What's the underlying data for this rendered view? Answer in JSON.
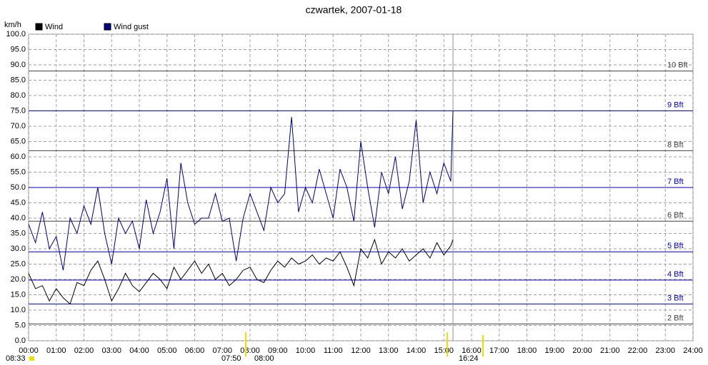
{
  "chart_data": {
    "type": "line",
    "title": "czwartek, 2007-01-18",
    "y_label": "km/h",
    "legend": "top-left",
    "grid": true,
    "x": [
      0,
      0.25,
      0.5,
      0.75,
      1,
      1.25,
      1.5,
      1.75,
      2,
      2.25,
      2.5,
      2.75,
      3,
      3.25,
      3.5,
      3.75,
      4,
      4.25,
      4.5,
      4.75,
      5,
      5.25,
      5.5,
      5.75,
      6,
      6.25,
      6.5,
      6.75,
      7,
      7.25,
      7.5,
      7.75,
      8,
      8.25,
      8.5,
      8.75,
      9,
      9.25,
      9.5,
      9.75,
      10,
      10.25,
      10.5,
      10.75,
      11,
      11.25,
      11.5,
      11.75,
      12,
      12.25,
      12.5,
      12.75,
      13,
      13.25,
      13.5,
      13.75,
      14,
      14.25,
      14.5,
      14.75,
      15,
      15.25,
      15.33
    ],
    "series": [
      {
        "name": "Wind",
        "color": "#000000",
        "values": [
          22,
          17,
          18,
          13,
          17,
          14,
          12,
          19,
          18,
          23,
          26,
          20,
          13,
          17,
          22,
          18,
          16,
          19,
          22,
          20,
          17,
          24,
          20,
          23,
          26,
          22,
          25,
          20,
          22,
          18,
          20,
          23,
          24,
          20,
          19,
          23,
          26,
          24,
          27,
          25,
          26,
          28,
          25,
          27,
          26,
          29,
          24,
          18,
          30,
          27,
          33,
          25,
          29,
          27,
          30,
          26,
          28,
          30,
          27,
          32,
          28,
          31,
          33
        ]
      },
      {
        "name": "Wind gust",
        "color": "#000080",
        "values": [
          38,
          32,
          42,
          30,
          34,
          23,
          40,
          35,
          44,
          38,
          50,
          35,
          25,
          40,
          35,
          39,
          30,
          46,
          35,
          42,
          53,
          30,
          58,
          45,
          38,
          40,
          40,
          48,
          39,
          40,
          26,
          40,
          48,
          42,
          36,
          50,
          45,
          48,
          73,
          42,
          50,
          45,
          56,
          48,
          40,
          56,
          50,
          39,
          65,
          50,
          37,
          55,
          48,
          60,
          43,
          52,
          72,
          45,
          55,
          48,
          58,
          52,
          75
        ]
      }
    ],
    "xlim": [
      0,
      24
    ],
    "xticks": [
      {
        "value": 0,
        "label": "00:00"
      },
      {
        "value": 1,
        "label": "01:00"
      },
      {
        "value": 2,
        "label": "02:00"
      },
      {
        "value": 3,
        "label": "03:00"
      },
      {
        "value": 4,
        "label": "04:00"
      },
      {
        "value": 5,
        "label": "05:00"
      },
      {
        "value": 6,
        "label": "06:00"
      },
      {
        "value": 7,
        "label": "07:00"
      },
      {
        "value": 8,
        "label": "08:00"
      },
      {
        "value": 9,
        "label": "09:00"
      },
      {
        "value": 10,
        "label": "10:00"
      },
      {
        "value": 11,
        "label": "11:00"
      },
      {
        "value": 12,
        "label": "12:00"
      },
      {
        "value": 13,
        "label": "13:00"
      },
      {
        "value": 14,
        "label": "14:00"
      },
      {
        "value": 15,
        "label": "15:00"
      },
      {
        "value": 16,
        "label": "16:00"
      },
      {
        "value": 17,
        "label": "17:00"
      },
      {
        "value": 18,
        "label": "18:00"
      },
      {
        "value": 19,
        "label": "19:00"
      },
      {
        "value": 20,
        "label": "20:00"
      },
      {
        "value": 21,
        "label": "21:00"
      },
      {
        "value": 22,
        "label": "22:00"
      },
      {
        "value": 23,
        "label": "23:00"
      },
      {
        "value": 24,
        "label": "24:00"
      }
    ],
    "ylim": [
      0,
      100
    ],
    "yticks": [
      {
        "value": 0,
        "label": "0.0"
      },
      {
        "value": 5,
        "label": "5.0"
      },
      {
        "value": 10,
        "label": "10.0"
      },
      {
        "value": 15,
        "label": "15.0"
      },
      {
        "value": 20,
        "label": "20.0"
      },
      {
        "value": 25,
        "label": "25.0"
      },
      {
        "value": 30,
        "label": "30.0"
      },
      {
        "value": 35,
        "label": "35.0"
      },
      {
        "value": 40,
        "label": "40.0"
      },
      {
        "value": 45,
        "label": "45.0"
      },
      {
        "value": 50,
        "label": "50.0"
      },
      {
        "value": 55,
        "label": "55.0"
      },
      {
        "value": 60,
        "label": "60.0"
      },
      {
        "value": 65,
        "label": "65.0"
      },
      {
        "value": 70,
        "label": "70.0"
      },
      {
        "value": 75,
        "label": "75.0"
      },
      {
        "value": 80,
        "label": "80.0"
      },
      {
        "value": 85,
        "label": "85.0"
      },
      {
        "value": 90,
        "label": "90.0"
      },
      {
        "value": 95,
        "label": "95.0"
      },
      {
        "value": 100,
        "label": "100.0"
      }
    ],
    "beaufort": [
      {
        "value": 5.5,
        "label": "2 Bft",
        "color": "#404040"
      },
      {
        "value": 12,
        "label": "3 Bft",
        "color": "#0000c0"
      },
      {
        "value": 19.8,
        "label": "4 Bft",
        "color": "#0000c0"
      },
      {
        "value": 29,
        "label": "5 Bft",
        "color": "#0000c0"
      },
      {
        "value": 39,
        "label": "6 Bft",
        "color": "#404040"
      },
      {
        "value": 50,
        "label": "7 Bft",
        "color": "#0000c0"
      },
      {
        "value": 62,
        "label": "8 Bft",
        "color": "#404040"
      },
      {
        "value": 75,
        "label": "9 Bft",
        "color": "#0000c0"
      },
      {
        "value": 88,
        "label": "10 Bft",
        "color": "#404040"
      }
    ],
    "annotations": [
      "08:33",
      "07:50",
      "08:00",
      "16:24"
    ]
  }
}
